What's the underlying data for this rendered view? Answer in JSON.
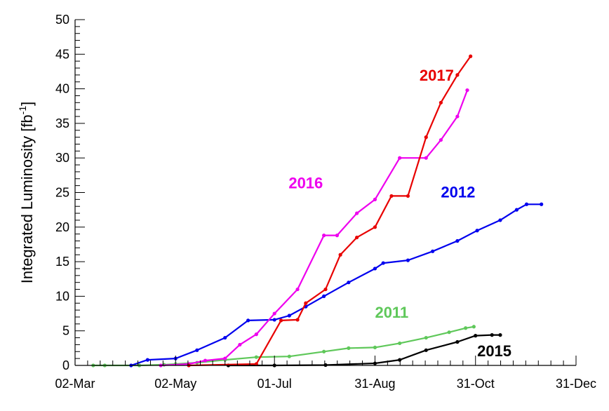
{
  "chart_data": {
    "type": "line",
    "title": "",
    "xlabel": "",
    "ylabel": "Integrated Luminosity [fb",
    "ylabel_unit_sup": "-1",
    "ylabel_close": "]",
    "x_type": "date",
    "xlim": [
      "02-Mar",
      "31-Dec"
    ],
    "ylim": [
      0,
      50
    ],
    "x_ticks": [
      "02-Mar",
      "02-May",
      "01-Jul",
      "31-Aug",
      "31-Oct",
      "31-Dec"
    ],
    "y_ticks": [
      "0",
      "5",
      "10",
      "15",
      "20",
      "25",
      "30",
      "35",
      "40",
      "45",
      "50"
    ],
    "grid": false,
    "legend": "none",
    "series": [
      {
        "name": "2011",
        "color": "#5fc85a",
        "points": [
          [
            "13-Mar",
            0
          ],
          [
            "20-Mar",
            0
          ],
          [
            "10-Apr",
            0
          ],
          [
            "25-Apr",
            0.1
          ],
          [
            "02-May",
            0.2
          ],
          [
            "15-May",
            0.4
          ],
          [
            "01-Jun",
            0.8
          ],
          [
            "20-Jun",
            1.2
          ],
          [
            "10-Jul",
            1.3
          ],
          [
            "31-Jul",
            2.0
          ],
          [
            "15-Aug",
            2.5
          ],
          [
            "31-Aug",
            2.6
          ],
          [
            "15-Sep",
            3.2
          ],
          [
            "01-Oct",
            4.0
          ],
          [
            "15-Oct",
            4.8
          ],
          [
            "25-Oct",
            5.4
          ],
          [
            "30-Oct",
            5.6
          ]
        ]
      },
      {
        "name": "2012",
        "color": "#0000ee",
        "points": [
          [
            "05-Apr",
            0
          ],
          [
            "15-Apr",
            0.8
          ],
          [
            "02-May",
            1.0
          ],
          [
            "15-May",
            2.2
          ],
          [
            "01-Jun",
            4.0
          ],
          [
            "15-Jun",
            6.5
          ],
          [
            "01-Jul",
            6.6
          ],
          [
            "10-Jul",
            7.2
          ],
          [
            "20-Jul",
            8.5
          ],
          [
            "31-Jul",
            10.0
          ],
          [
            "15-Aug",
            12.0
          ],
          [
            "31-Aug",
            14.0
          ],
          [
            "05-Sep",
            14.8
          ],
          [
            "20-Sep",
            15.2
          ],
          [
            "05-Oct",
            16.5
          ],
          [
            "20-Oct",
            18.0
          ],
          [
            "01-Nov",
            19.5
          ],
          [
            "15-Nov",
            21.0
          ],
          [
            "25-Nov",
            22.5
          ],
          [
            "01-Dec",
            23.3
          ],
          [
            "10-Dec",
            23.3
          ]
        ]
      },
      {
        "name": "2015",
        "color": "#000000",
        "points": [
          [
            "03-Jun",
            0
          ],
          [
            "01-Jul",
            0
          ],
          [
            "01-Aug",
            0.05
          ],
          [
            "31-Aug",
            0.3
          ],
          [
            "15-Sep",
            0.8
          ],
          [
            "01-Oct",
            2.2
          ],
          [
            "20-Oct",
            3.4
          ],
          [
            "31-Oct",
            4.3
          ],
          [
            "10-Nov",
            4.4
          ],
          [
            "15-Nov",
            4.4
          ]
        ]
      },
      {
        "name": "2016",
        "color": "#ee00ee",
        "points": [
          [
            "23-Apr",
            0
          ],
          [
            "10-May",
            0.2
          ],
          [
            "20-May",
            0.7
          ],
          [
            "01-Jun",
            1.0
          ],
          [
            "10-Jun",
            3.0
          ],
          [
            "20-Jun",
            4.5
          ],
          [
            "01-Jul",
            7.5
          ],
          [
            "15-Jul",
            11.0
          ],
          [
            "31-Jul",
            18.8
          ],
          [
            "08-Aug",
            18.8
          ],
          [
            "20-Aug",
            22.0
          ],
          [
            "31-Aug",
            24.0
          ],
          [
            "15-Sep",
            30.0
          ],
          [
            "01-Oct",
            30.0
          ],
          [
            "10-Oct",
            32.6
          ],
          [
            "20-Oct",
            36.0
          ],
          [
            "26-Oct",
            39.8
          ]
        ]
      },
      {
        "name": "2017",
        "color": "#e80000",
        "points": [
          [
            "10-May",
            0
          ],
          [
            "20-Jun",
            0.2
          ],
          [
            "05-Jul",
            6.5
          ],
          [
            "15-Jul",
            6.6
          ],
          [
            "20-Jul",
            9.0
          ],
          [
            "01-Aug",
            11.0
          ],
          [
            "10-Aug",
            16.0
          ],
          [
            "20-Aug",
            18.5
          ],
          [
            "31-Aug",
            20.0
          ],
          [
            "10-Sep",
            24.5
          ],
          [
            "20-Sep",
            24.5
          ],
          [
            "01-Oct",
            33.0
          ],
          [
            "10-Oct",
            38.0
          ],
          [
            "20-Oct",
            42.0
          ],
          [
            "28-Oct",
            44.7
          ]
        ]
      }
    ]
  }
}
